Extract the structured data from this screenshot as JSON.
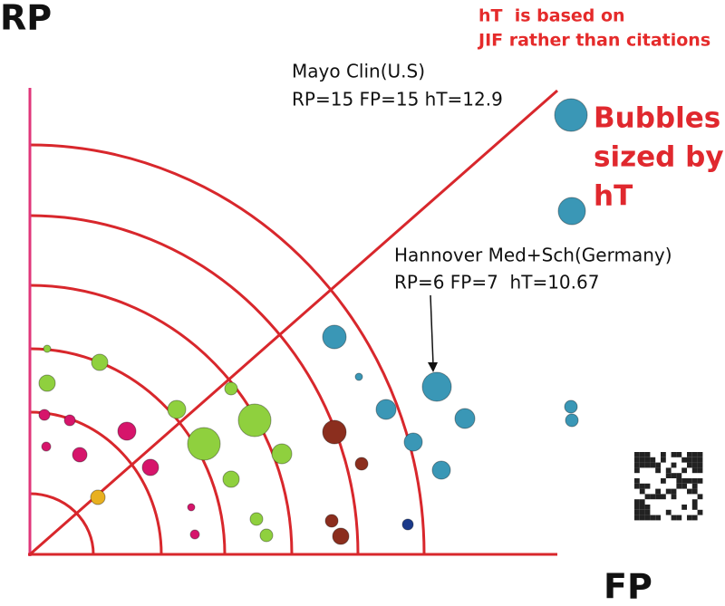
{
  "labels": {
    "y_axis": "RP",
    "x_axis": "FP"
  },
  "note": [
    "hT  is based on",
    "JIF rather than citations"
  ],
  "callouts": [
    {
      "name": "Mayo Clin(U.S)",
      "stats": "RP=15 FP=15 hT=12.9"
    },
    {
      "name": "Hannover Med+Sch(Germany)",
      "stats": "RP=6 FP=7  hT=10.67"
    }
  ],
  "size_note": [
    "Bubbles",
    "sized by",
    "hT"
  ]
}
